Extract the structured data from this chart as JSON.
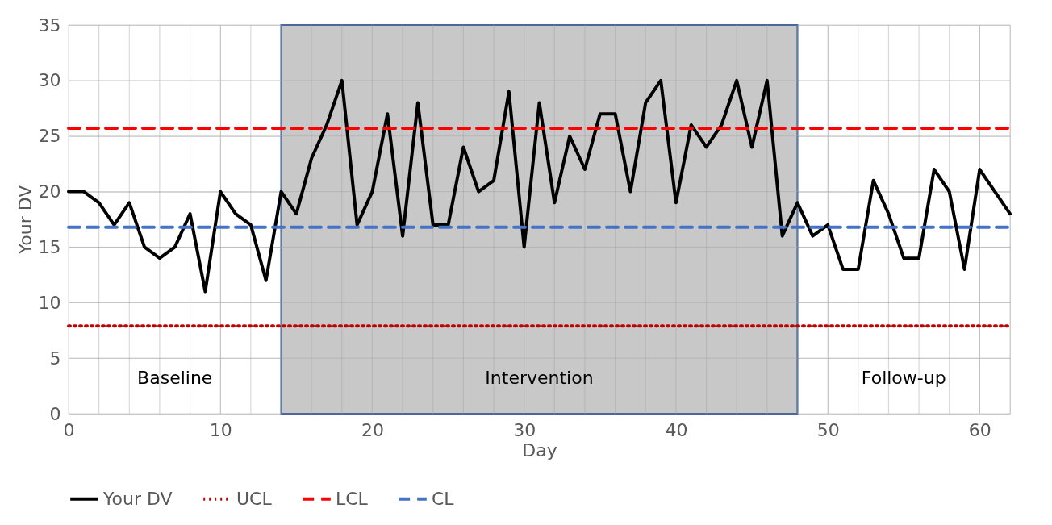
{
  "chart_data": {
    "type": "line",
    "xlabel": "Day",
    "ylabel": "Your DV",
    "xlim": [
      0,
      62
    ],
    "ylim": [
      0,
      35
    ],
    "xticks": [
      0,
      {
        "value": 2,
        "label": null
      },
      {
        "value": 4,
        "label": null
      },
      {
        "value": 6,
        "label": null
      },
      {
        "value": 8,
        "label": null
      },
      10,
      {
        "value": 12,
        "label": null
      },
      {
        "value": 14,
        "label": null
      },
      {
        "value": 16,
        "label": null
      },
      {
        "value": 18,
        "label": null
      },
      20,
      {
        "value": 22,
        "label": null
      },
      {
        "value": 24,
        "label": null
      },
      {
        "value": 26,
        "label": null
      },
      {
        "value": 28,
        "label": null
      },
      30,
      {
        "value": 32,
        "label": null
      },
      {
        "value": 34,
        "label": null
      },
      {
        "value": 36,
        "label": null
      },
      {
        "value": 38,
        "label": null
      },
      40,
      {
        "value": 42,
        "label": null
      },
      {
        "value": 44,
        "label": null
      },
      {
        "value": 46,
        "label": null
      },
      {
        "value": 48,
        "label": null
      },
      50,
      {
        "value": 52,
        "label": null
      },
      {
        "value": 54,
        "label": null
      },
      {
        "value": 56,
        "label": null
      },
      {
        "value": 58,
        "label": null
      },
      60,
      {
        "value": 62,
        "label": null
      }
    ],
    "yticks": [
      0,
      5,
      10,
      15,
      20,
      25,
      30,
      35
    ],
    "grid": true,
    "legend": "bottom",
    "x": [
      0,
      1,
      2,
      3,
      4,
      5,
      6,
      7,
      8,
      9,
      10,
      11,
      12,
      13,
      14,
      15,
      16,
      17,
      18,
      19,
      20,
      21,
      22,
      23,
      24,
      25,
      26,
      27,
      28,
      29,
      30,
      31,
      32,
      33,
      34,
      35,
      36,
      37,
      38,
      39,
      40,
      41,
      42,
      43,
      44,
      45,
      46,
      47,
      48,
      49,
      50,
      51,
      52,
      53,
      54,
      55,
      56,
      57,
      58,
      59,
      60,
      61,
      62
    ],
    "series": [
      {
        "name": "Your DV",
        "color": "#000000",
        "line_style": "solid",
        "values": [
          20,
          20,
          19,
          17,
          19,
          15,
          14,
          15,
          18,
          11,
          20,
          18,
          17,
          12,
          20,
          18,
          23,
          26,
          30,
          17,
          20,
          27,
          16,
          28,
          17,
          17,
          24,
          20,
          21,
          29,
          15,
          28,
          19,
          25,
          22,
          27,
          27,
          20,
          28,
          30,
          19,
          26,
          24,
          26,
          30,
          24,
          30,
          16,
          19,
          16,
          17,
          13,
          13,
          21,
          18,
          14,
          14,
          22,
          20,
          13,
          22,
          20,
          18
        ]
      }
    ],
    "ref_lines": [
      {
        "axis": "y",
        "value": 7.9,
        "label": "UCL",
        "color": "#c00000",
        "line_style": "dotted"
      },
      {
        "axis": "y",
        "value": 25.7,
        "label": "LCL",
        "color": "#ff0000",
        "line_style": "dashed"
      },
      {
        "axis": "y",
        "value": 16.8,
        "label": "CL",
        "color": "#4472c4",
        "line_style": "dashed"
      }
    ],
    "bands": [
      {
        "axis": "x",
        "from": 14,
        "to": 48,
        "label": "Intervention",
        "color": "#c8c8c8"
      }
    ],
    "annotations": [
      "Baseline",
      "Follow-up"
    ]
  }
}
